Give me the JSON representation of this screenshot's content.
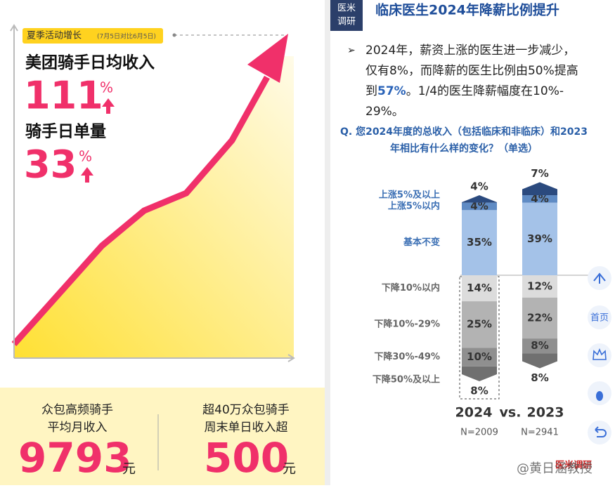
{
  "left": {
    "tag": "夏季活动增长",
    "tag_note": "(7月5日对比6月5日)",
    "metric1": {
      "label": "美团骑手日均收入",
      "value": "111",
      "unit": "%"
    },
    "metric2": {
      "label": "骑手日单量",
      "value": "33",
      "unit": "%"
    },
    "stat1": {
      "lines": [
        "众包高频骑手",
        "平均月收入"
      ],
      "value": "9793",
      "unit": "元"
    },
    "stat2": {
      "lines": [
        "超40万众包骑手",
        "周末单日收入超"
      ],
      "value": "500",
      "unit": "元"
    }
  },
  "header": {
    "badge": [
      "医米",
      "调研"
    ],
    "title": "临床医生2024年降薪比例提升"
  },
  "bullet": {
    "mark": "➢",
    "lines": [
      "2024年，薪资上涨的医生进一步减少，",
      "仅有8%，而降薪的医生比例由50%提高",
      {
        "before": "到",
        "highlight": "57%",
        "after": "。1/4的医生降薪幅度在10%-"
      },
      "29%。"
    ]
  },
  "chart_data": {
    "type": "diverging-stacked-bar",
    "title": [
      "Q. 您2024年度的总收入（包括临床和非临床）和2023",
      "年相比有什么样的变化？（单选）"
    ],
    "categories": [
      "2024",
      "2023"
    ],
    "separator": "vs.",
    "sample_sizes": [
      "N=2009",
      "N=2941"
    ],
    "series": [
      {
        "name": "基本不变",
        "color": "#a4c2e8",
        "values": [
          35,
          39
        ],
        "value_labels": [
          "35%",
          "39%"
        ]
      },
      {
        "name": "上涨5%以内",
        "color": "#5f8bc4",
        "values": [
          4,
          4
        ],
        "value_labels": [
          "4%",
          "4%"
        ]
      },
      {
        "name": "上涨5%及以上",
        "color": "#2b4a7e",
        "values": [
          4,
          7
        ],
        "value_labels": [
          "4%",
          "7%"
        ]
      },
      {
        "name": "下降10%以内",
        "color": "#dcdcdc",
        "values": [
          -14,
          -12
        ],
        "value_labels": [
          "14%",
          "12%"
        ]
      },
      {
        "name": "下降10%-29%",
        "color": "#b3b3b3",
        "values": [
          -25,
          -22
        ],
        "value_labels": [
          "25%",
          "22%"
        ]
      },
      {
        "name": "下降30%-49%",
        "color": "#8f8f8f",
        "values": [
          -10,
          -8
        ],
        "value_labels": [
          "10%",
          "8%"
        ]
      },
      {
        "name": "下降50%及以上",
        "color": "#707070",
        "values": [
          -8,
          -8
        ],
        "value_labels": [
          "8%",
          "8%"
        ]
      }
    ]
  },
  "nav": {
    "home": "首页"
  },
  "footer": {
    "watermark": "@黄日涵教授",
    "source": "医米调研"
  }
}
